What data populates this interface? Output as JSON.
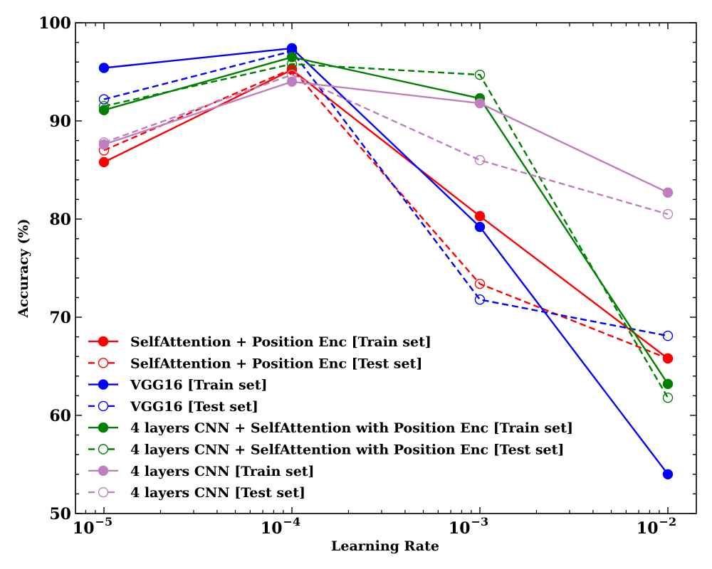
{
  "chart_data": {
    "type": "line",
    "title": "",
    "xlabel": "Learning Rate",
    "ylabel": "Accuracy (%)",
    "xscale": "log",
    "x": [
      1e-05,
      0.0001,
      0.001,
      0.01
    ],
    "xticks": [
      {
        "base": "10",
        "exp": "−5"
      },
      {
        "base": "10",
        "exp": "−4"
      },
      {
        "base": "10",
        "exp": "−3"
      },
      {
        "base": "10",
        "exp": "−2"
      }
    ],
    "ylim": [
      50,
      100
    ],
    "yticks": [
      "50",
      "60",
      "70",
      "80",
      "90",
      "100"
    ],
    "grid": false,
    "legend_position": "bottom-left",
    "series": [
      {
        "name": "SelfAttention + Position Enc [Train set]",
        "color": "#ff0000",
        "dashed": false,
        "filled": true,
        "values": [
          85.8,
          95.2,
          80.3,
          65.8
        ]
      },
      {
        "name": "SelfAttention + Position Enc [Test set]",
        "color": "#ff0000",
        "dashed": true,
        "filled": false,
        "values": [
          87.0,
          95.3,
          73.4,
          65.8
        ]
      },
      {
        "name": "VGG16 [Train set]",
        "color": "#0000ff",
        "dashed": false,
        "filled": true,
        "values": [
          95.4,
          97.4,
          79.2,
          54.0
        ]
      },
      {
        "name": "VGG16 [Test set]",
        "color": "#0000ff",
        "dashed": true,
        "filled": false,
        "values": [
          92.2,
          97.1,
          71.8,
          68.1
        ]
      },
      {
        "name": "4 layers CNN + SelfAttention with Position Enc [Train set]",
        "color": "#008000",
        "dashed": false,
        "filled": true,
        "values": [
          91.1,
          96.5,
          92.3,
          63.2
        ]
      },
      {
        "name": "4 layers CNN + SelfAttention with Position Enc [Test set]",
        "color": "#008000",
        "dashed": true,
        "filled": false,
        "values": [
          91.5,
          95.8,
          94.7,
          61.8
        ]
      },
      {
        "name": "4 layers CNN [Train set]",
        "color": "#bf7fbf",
        "dashed": false,
        "filled": true,
        "values": [
          87.6,
          94.0,
          91.8,
          82.7
        ]
      },
      {
        "name": "4 layers CNN [Test set]",
        "color": "#bf7fbf",
        "dashed": true,
        "filled": false,
        "values": [
          87.8,
          94.7,
          86.0,
          80.5
        ]
      }
    ]
  }
}
